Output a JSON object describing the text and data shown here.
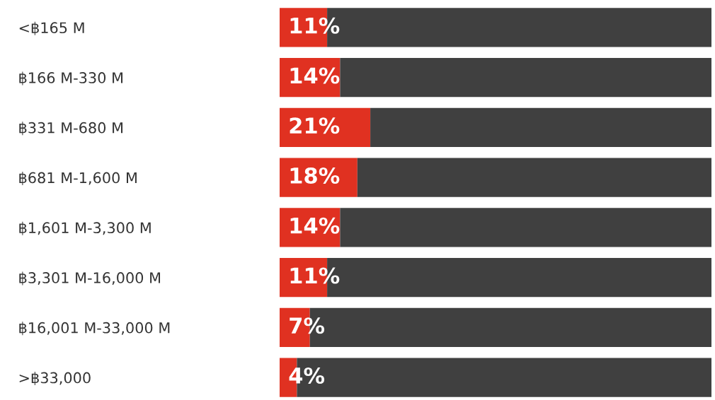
{
  "chart_data": {
    "type": "bar",
    "orientation": "horizontal",
    "stacked": true,
    "categories": [
      "<฿165 M",
      "฿166 M-330 M",
      "฿331 M-680 M",
      "฿681 M-1,600 M",
      "฿1,601 M-3,300 M",
      "฿3,301 M-16,000 M",
      "฿16,001 M-33,000 M",
      ">฿33,000"
    ],
    "series": [
      {
        "color": "#e03121",
        "values": [
          11,
          14,
          21,
          18,
          14,
          11,
          7,
          4
        ],
        "value_labels": [
          "11%",
          "14%",
          "21%",
          "18%",
          "14%",
          "11%",
          "7%",
          "4%"
        ]
      },
      {
        "color": "#404040",
        "values": [
          89,
          86,
          79,
          82,
          86,
          89,
          93,
          96
        ]
      }
    ],
    "xlim": [
      0,
      100
    ],
    "tick_labels": "y",
    "grid": false,
    "legend": false
  }
}
